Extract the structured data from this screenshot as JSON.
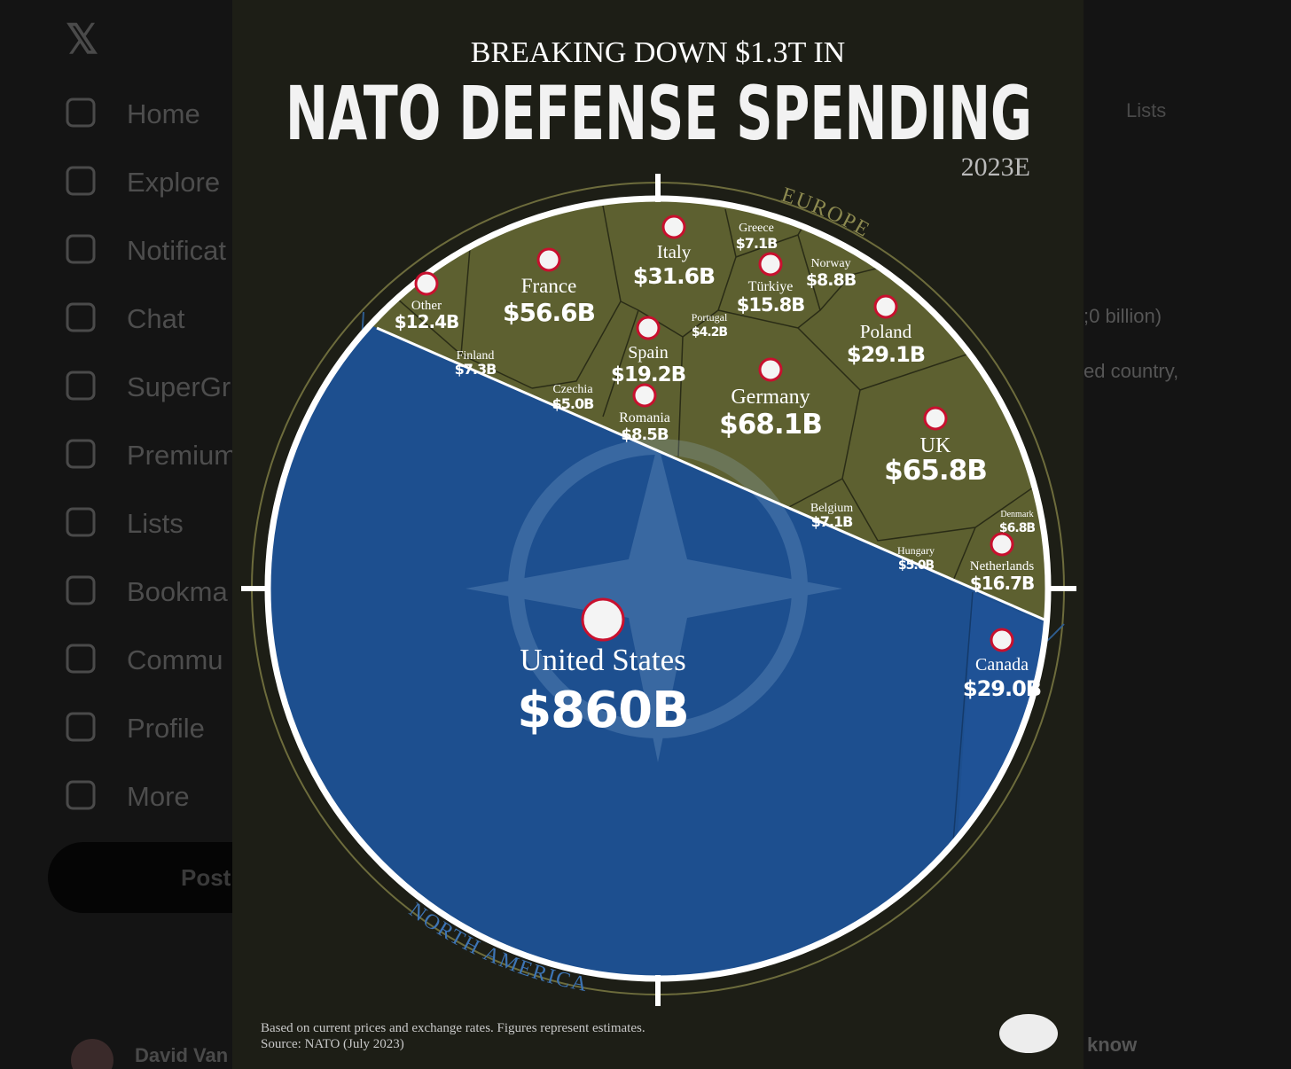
{
  "sidebar": {
    "nav": [
      "Home",
      "Explore",
      "Notificat",
      "Chat",
      "SuperGr",
      "Premium",
      "Lists",
      "Bookma",
      "Commu",
      "Profile",
      "More"
    ],
    "post_button": "Post",
    "account": "David Van"
  },
  "right_panel": {
    "tab": "Lists",
    "fragments": [
      ";0 billion)",
      "ed country,",
      "know"
    ]
  },
  "infographic": {
    "kicker": "BREAKING DOWN $1.3T IN",
    "title": "NATO DEFENSE SPENDING",
    "year": "2023E",
    "regions": [
      "EUROPE",
      "NORTH AMERICA"
    ],
    "countries": [
      {
        "name": "Other",
        "spending": "$12.4B"
      },
      {
        "name": "France",
        "spending": "$56.6B"
      },
      {
        "name": "Italy",
        "spending": "$31.6B"
      },
      {
        "name": "Greece",
        "spending": "$7.1B"
      },
      {
        "name": "Norway",
        "spending": "$8.8B"
      },
      {
        "name": "Türkiye",
        "spending": "$15.8B"
      },
      {
        "name": "Portugal",
        "spending": "$4.2B"
      },
      {
        "name": "Spain",
        "spending": "$19.2B"
      },
      {
        "name": "Finland",
        "spending": "$7.3B"
      },
      {
        "name": "Czechia",
        "spending": "$5.0B"
      },
      {
        "name": "Romania",
        "spending": "$8.5B"
      },
      {
        "name": "Germany",
        "spending": "$68.1B"
      },
      {
        "name": "Poland",
        "spending": "$29.1B"
      },
      {
        "name": "UK",
        "spending": "$65.8B"
      },
      {
        "name": "Belgium",
        "spending": "$7.1B"
      },
      {
        "name": "Denmark",
        "spending": "$6.8B"
      },
      {
        "name": "Hungary",
        "spending": "$5.0B"
      },
      {
        "name": "Netherlands",
        "spending": "$16.7B"
      },
      {
        "name": "Canada",
        "spending": "$29.0B"
      },
      {
        "name": "United States",
        "spending": "$860B"
      }
    ],
    "notes": [
      "Based on current prices and exchange rates. Figures represent estimates.",
      "Source: NATO (July 2023)"
    ]
  }
}
